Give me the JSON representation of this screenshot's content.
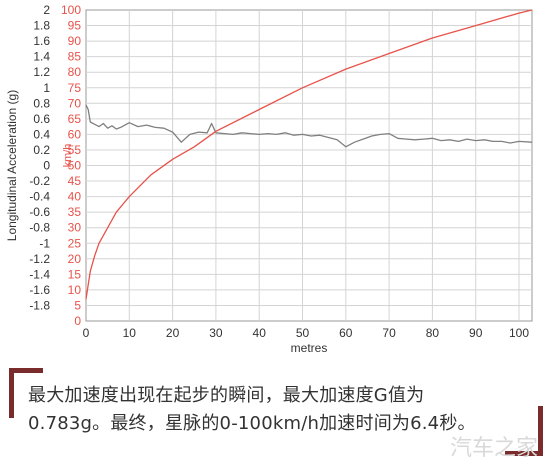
{
  "chart_data": {
    "type": "line",
    "xlabel": "metres",
    "ylabel_left": "Longitudinal Acceleration (g)",
    "ylabel_right": "km/h",
    "xlim": [
      0,
      103
    ],
    "ylim_left": [
      -2,
      2
    ],
    "ylim_right": [
      0,
      100
    ],
    "x_ticks": [
      "0",
      "10",
      "20",
      "30",
      "40",
      "50",
      "60",
      "70",
      "80",
      "90",
      "100"
    ],
    "y_left_ticks": [
      "2",
      "1.8",
      "1.6",
      "1.4",
      "1.2",
      "1",
      "0.8",
      "0.6",
      "0.4",
      "0.2",
      "0",
      "-0.2",
      "-0.4",
      "-0.6",
      "-0.8",
      "-1",
      "-1.2",
      "-1.4",
      "-1.6",
      "-1.8"
    ],
    "y_right_ticks": [
      "100",
      "95",
      "90",
      "85",
      "80",
      "75",
      "70",
      "65",
      "60",
      "55",
      "50",
      "45",
      "40",
      "35",
      "30",
      "25",
      "20",
      "15",
      "10",
      "5",
      "0"
    ],
    "grid": true,
    "series": [
      {
        "axis": "left",
        "color": "#808080",
        "x": [
          0,
          0.5,
          1,
          2,
          3,
          4,
          5,
          6,
          7,
          8,
          10,
          12,
          14,
          16,
          18,
          20,
          22,
          24,
          26,
          28,
          29,
          30,
          32,
          34,
          36,
          38,
          40,
          42,
          44,
          46,
          48,
          50,
          52,
          54,
          56,
          58,
          60,
          62,
          64,
          66,
          68,
          70,
          72,
          74,
          76,
          78,
          80,
          82,
          84,
          86,
          88,
          90,
          92,
          94,
          96,
          98,
          100,
          103
        ],
        "values": [
          0.78,
          0.72,
          0.56,
          0.53,
          0.5,
          0.54,
          0.48,
          0.51,
          0.47,
          0.49,
          0.55,
          0.5,
          0.52,
          0.49,
          0.48,
          0.43,
          0.3,
          0.4,
          0.43,
          0.42,
          0.54,
          0.42,
          0.41,
          0.4,
          0.42,
          0.41,
          0.4,
          0.41,
          0.4,
          0.42,
          0.39,
          0.4,
          0.38,
          0.39,
          0.36,
          0.33,
          0.24,
          0.3,
          0.34,
          0.38,
          0.4,
          0.41,
          0.35,
          0.34,
          0.33,
          0.34,
          0.35,
          0.32,
          0.33,
          0.31,
          0.34,
          0.32,
          0.33,
          0.31,
          0.31,
          0.29,
          0.31,
          0.3
        ]
      },
      {
        "axis": "right",
        "color": "#e8524a",
        "x": [
          0,
          1,
          2,
          3,
          5,
          7,
          10,
          15,
          20,
          25,
          30,
          40,
          50,
          60,
          70,
          80,
          90,
          100,
          103
        ],
        "values": [
          7,
          16,
          21,
          25,
          30,
          35,
          40,
          47,
          52,
          56,
          61,
          68,
          75,
          81,
          86,
          91,
          95,
          99,
          100
        ]
      }
    ]
  },
  "caption": {
    "line1": "最大加速度出现在起步的瞬间，最大加速度G值为",
    "line2": "0.783g。最终，星脉的0-100km/h加速时间为6.4秒。"
  },
  "watermark": "汽车之家"
}
